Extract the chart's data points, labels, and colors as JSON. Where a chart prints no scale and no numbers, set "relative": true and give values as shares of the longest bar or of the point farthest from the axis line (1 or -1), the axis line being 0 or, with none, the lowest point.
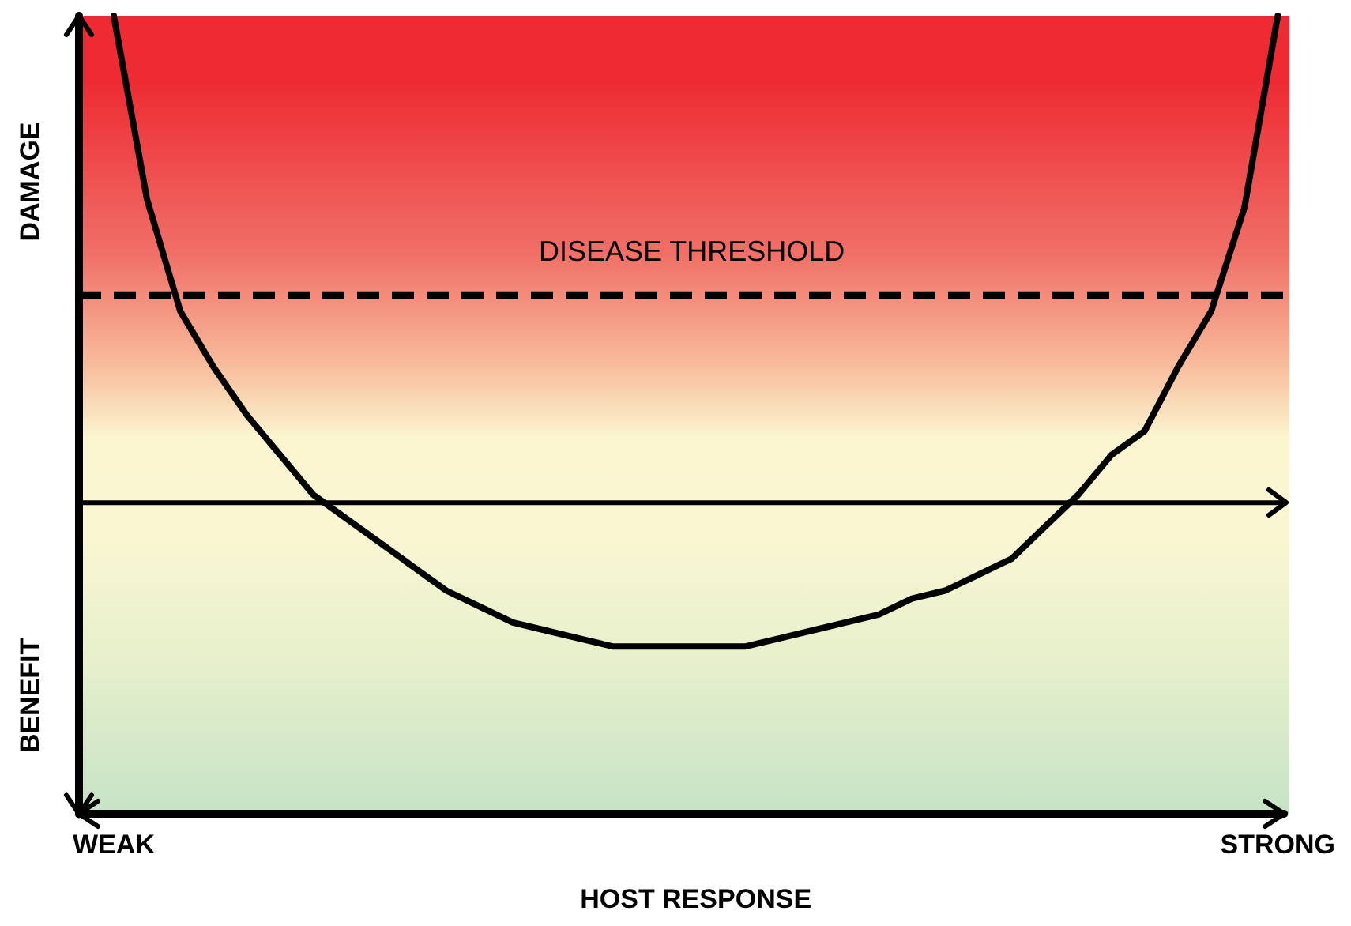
{
  "chart_data": {
    "type": "line",
    "relative": true,
    "xlabel": "HOST RESPONSE",
    "categories": [
      "WEAK",
      null,
      null,
      null,
      null,
      null,
      null,
      null,
      null,
      null,
      null,
      null,
      null,
      null,
      null,
      null,
      null,
      null,
      null,
      null,
      null,
      null,
      null,
      null,
      null,
      null,
      null,
      null,
      null,
      null,
      null,
      null,
      null,
      null,
      null,
      "STRONG"
    ],
    "annotations": [
      "DAMAGE",
      "BENEFIT"
    ],
    "ref_lines": [
      {
        "axis": "y",
        "value": 0.65,
        "label": "DISEASE THRESHOLD",
        "line_style": "dashed",
        "color": "#000000"
      },
      {
        "axis": "y",
        "value": 0.39,
        "line_style": "solid",
        "color": "#000000"
      }
    ],
    "series": [
      {
        "color": "#000000",
        "values": [
          1.0,
          0.77,
          0.63,
          0.56,
          0.5,
          0.45,
          0.4,
          0.37,
          0.34,
          0.31,
          0.28,
          0.26,
          0.24,
          0.23,
          0.22,
          0.21,
          0.21,
          0.21,
          0.21,
          0.21,
          0.22,
          0.23,
          0.24,
          0.25,
          0.27,
          0.28,
          0.3,
          0.32,
          0.36,
          0.4,
          0.45,
          0.48,
          0.56,
          0.63,
          0.76,
          1.0
        ]
      }
    ],
    "grid": false,
    "legend": false,
    "marker": "none",
    "line_style": "solid"
  }
}
